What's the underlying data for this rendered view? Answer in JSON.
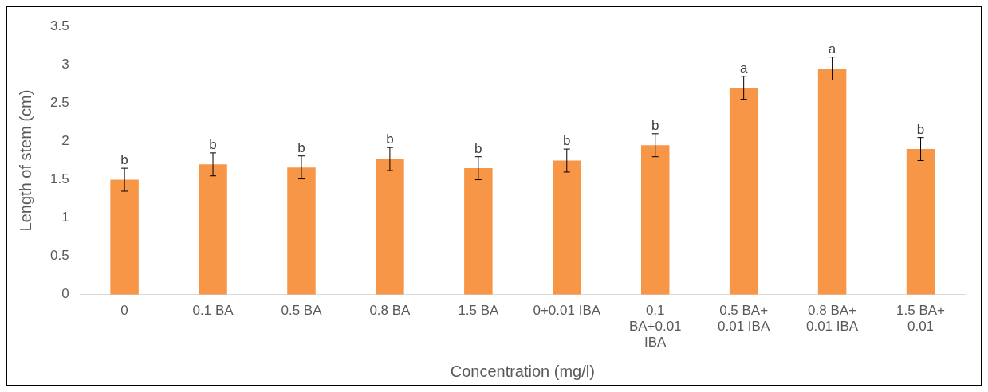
{
  "chart_data": {
    "type": "bar",
    "xlabel": "Concentration (mg/l)",
    "ylabel": "Length of stem (cm)",
    "categories": [
      "0",
      "0.1 BA",
      "0.5 BA",
      "0.8 BA",
      "1.5 BA",
      "0+0.01 IBA",
      "0.1 BA+0.01 IBA",
      "0.5 BA+ 0.01 IBA",
      "0.8 BA+ 0.01 IBA",
      "1.5 BA+ 0.01"
    ],
    "values": [
      1.5,
      1.7,
      1.66,
      1.77,
      1.65,
      1.75,
      1.95,
      2.7,
      2.95,
      1.9
    ],
    "errors": [
      0.15,
      0.15,
      0.15,
      0.15,
      0.15,
      0.15,
      0.15,
      0.15,
      0.15,
      0.15
    ],
    "color": "#f79646",
    "ylim": [
      0,
      3.5
    ],
    "yticks": [
      0,
      0.5,
      1,
      1.5,
      2,
      2.5,
      3,
      3.5
    ],
    "grid": false,
    "annotations": [
      {
        "text": "b",
        "x": "0",
        "y": 1.65
      },
      {
        "text": "b",
        "x": "0.1 BA",
        "y": 1.85
      },
      {
        "text": "b",
        "x": "0.5 BA",
        "y": 1.81
      },
      {
        "text": "b",
        "x": "0.8 BA",
        "y": 1.92
      },
      {
        "text": "b",
        "x": "1.5 BA",
        "y": 1.8
      },
      {
        "text": "b",
        "x": "0+0.01 IBA",
        "y": 1.9
      },
      {
        "text": "b",
        "x": "0.1 BA+0.01 IBA",
        "y": 2.1
      },
      {
        "text": "a",
        "x": "0.5 BA+ 0.01 IBA",
        "y": 2.85
      },
      {
        "text": "a",
        "x": "0.8 BA+ 0.01 IBA",
        "y": 3.1
      },
      {
        "text": "b",
        "x": "1.5 BA+ 0.01",
        "y": 2.05
      }
    ]
  }
}
